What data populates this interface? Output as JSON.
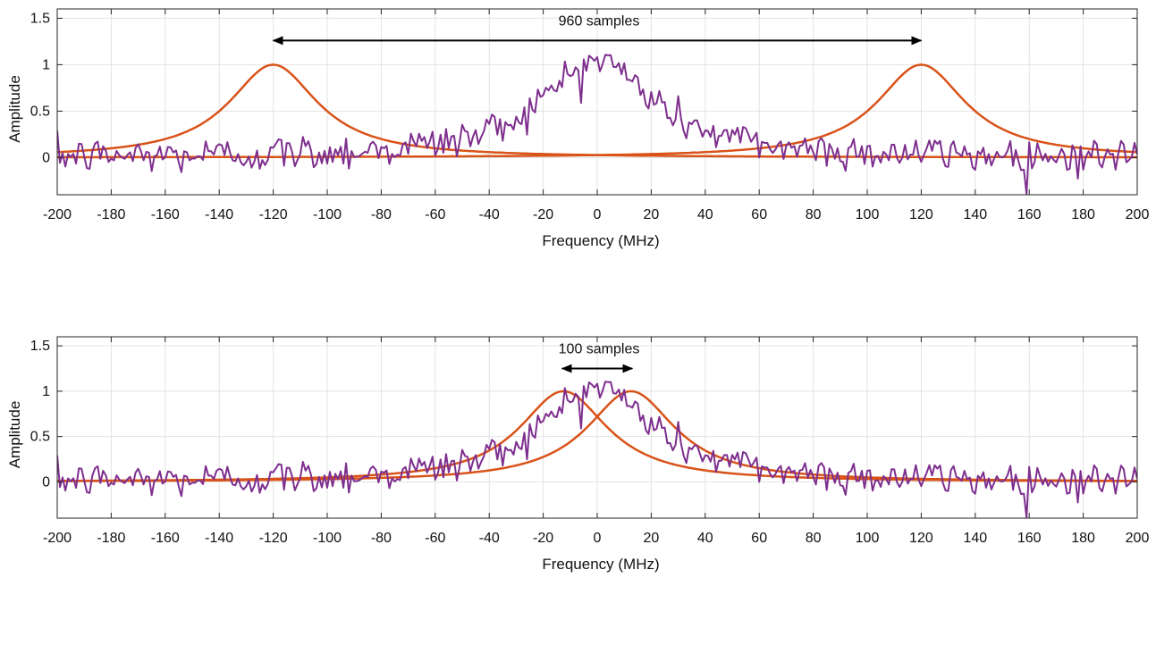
{
  "chart_data": [
    {
      "type": "line",
      "xlabel": "Frequency (MHz)",
      "ylabel": "Amplitude",
      "xlim": [
        -200,
        200
      ],
      "ylim": [
        -0.4,
        1.6
      ],
      "xticks": [
        -200,
        -180,
        -160,
        -140,
        -120,
        -100,
        -80,
        -60,
        -40,
        -20,
        0,
        20,
        40,
        60,
        80,
        100,
        120,
        140,
        160,
        180,
        200
      ],
      "yticks": [
        0,
        0.5,
        1,
        1.5
      ],
      "ytick_labels": [
        "0",
        "0.5",
        "1",
        "1.5"
      ],
      "grid": true,
      "annotation": {
        "text": "960 samples",
        "arrow_from_x": -120,
        "arrow_to_x": 120,
        "arrow_y": 1.26
      },
      "series": [
        {
          "color": "#D95319",
          "kind": "lorentzian",
          "center": -120,
          "hwhm": 20,
          "amplitude": 1.0
        },
        {
          "color": "#D95319",
          "kind": "lorentzian",
          "center": 120,
          "hwhm": 20,
          "amplitude": 1.0
        },
        {
          "color": "#7E2F8E",
          "kind": "noisy-lorentzian",
          "center": 0,
          "hwhm": 25,
          "amplitude": 1.05,
          "noise_sd": 0.1,
          "x_start": -200,
          "x_end": 200,
          "x_step": 1
        }
      ]
    },
    {
      "type": "line",
      "xlabel": "Frequency (MHz)",
      "ylabel": "Amplitude",
      "xlim": [
        -200,
        200
      ],
      "ylim": [
        -0.4,
        1.6
      ],
      "xticks": [
        -200,
        -180,
        -160,
        -140,
        -120,
        -100,
        -80,
        -60,
        -40,
        -20,
        0,
        20,
        40,
        60,
        80,
        100,
        120,
        140,
        160,
        180,
        200
      ],
      "yticks": [
        0,
        0.5,
        1,
        1.5
      ],
      "ytick_labels": [
        "0",
        "0.5",
        "1",
        "1.5"
      ],
      "grid": true,
      "annotation": {
        "text": "100 samples",
        "arrow_from_x": -13,
        "arrow_to_x": 13,
        "arrow_y": 1.25
      },
      "series": [
        {
          "color": "#D95319",
          "kind": "lorentzian",
          "center": -12.5,
          "hwhm": 20,
          "amplitude": 1.0
        },
        {
          "color": "#D95319",
          "kind": "lorentzian",
          "center": 12.5,
          "hwhm": 20,
          "amplitude": 1.0
        },
        {
          "color": "#7E2F8E",
          "kind": "noisy-lorentzian",
          "center": 0,
          "hwhm": 25,
          "amplitude": 1.05,
          "noise_sd": 0.1,
          "x_start": -200,
          "x_end": 200,
          "x_step": 1
        }
      ]
    }
  ]
}
